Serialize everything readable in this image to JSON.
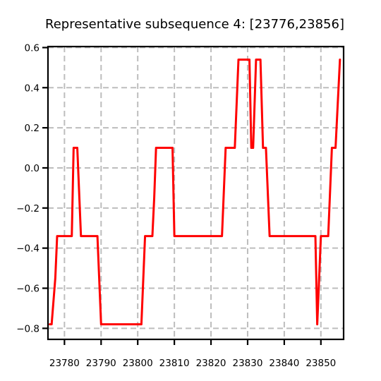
{
  "chart_data": {
    "type": "line",
    "title": "Representative subsequence 4: [23776,23856]",
    "xlabel": "",
    "ylabel": "",
    "xlim": [
      23775.5,
      23856.2
    ],
    "ylim": [
      -0.855,
      0.605
    ],
    "grid": true,
    "x_ticks": [
      23780,
      23790,
      23800,
      23810,
      23820,
      23830,
      23840,
      23850
    ],
    "x_tick_labels": [
      "23780",
      "23790",
      "23800",
      "23810",
      "23820",
      "23830",
      "23840",
      "23850"
    ],
    "y_ticks": [
      -0.8,
      -0.6,
      -0.4,
      -0.2,
      0.0,
      0.2,
      0.4,
      0.6
    ],
    "y_tick_labels": [
      "−0.8",
      "−0.6",
      "−0.4",
      "−0.2",
      "0.0",
      "0.2",
      "0.4",
      "0.6"
    ],
    "series": [
      {
        "color": "#ff0000",
        "x": [
          23776,
          23776.5,
          23777.5,
          23778,
          23781,
          23782,
          23782.5,
          23783,
          23783.5,
          23784.5,
          23785,
          23788.5,
          23789,
          23790,
          23800,
          23801,
          23802,
          23804,
          23804.5,
          23805,
          23806,
          23808,
          23809.5,
          23810,
          23810.5,
          23816,
          23823,
          23824,
          23826.5,
          23827.5,
          23828,
          23830.5,
          23831,
          23831.5,
          23832.3,
          23833.5,
          23834.2,
          23835,
          23836,
          23837,
          23848,
          23848.5,
          23849,
          23850,
          23852,
          23853,
          23854,
          23855.2
        ],
        "y": [
          -0.78,
          -0.78,
          -0.55,
          -0.34,
          -0.34,
          -0.34,
          0.1,
          0.1,
          0.1,
          -0.34,
          -0.34,
          -0.34,
          -0.34,
          -0.78,
          -0.78,
          -0.78,
          -0.34,
          -0.34,
          -0.15,
          0.1,
          0.1,
          0.1,
          0.1,
          -0.34,
          -0.34,
          -0.34,
          -0.34,
          0.1,
          0.1,
          0.54,
          0.54,
          0.54,
          0.1,
          0.1,
          0.54,
          0.54,
          0.1,
          0.1,
          -0.34,
          -0.34,
          -0.34,
          -0.34,
          -0.78,
          -0.34,
          -0.34,
          0.1,
          0.1,
          0.54
        ]
      }
    ]
  }
}
